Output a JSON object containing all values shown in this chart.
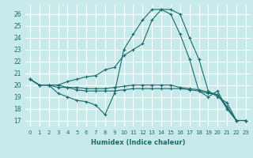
{
  "title": "",
  "xlabel": "Humidex (Indice chaleur)",
  "background_color": "#c8eaea",
  "grid_color": "#ffffff",
  "line_color": "#1a6b6b",
  "xlim": [
    -0.5,
    23.5
  ],
  "ylim": [
    16.5,
    26.8
  ],
  "yticks": [
    17,
    18,
    19,
    20,
    21,
    22,
    23,
    24,
    25,
    26
  ],
  "xticks": [
    0,
    1,
    2,
    3,
    4,
    5,
    6,
    7,
    8,
    9,
    10,
    11,
    12,
    13,
    14,
    15,
    16,
    17,
    18,
    19,
    20,
    21,
    22,
    23
  ],
  "series": [
    [
      20.5,
      20.0,
      20.0,
      19.3,
      19.0,
      18.7,
      18.6,
      18.3,
      17.5,
      19.3,
      23.0,
      24.3,
      25.5,
      26.4,
      26.4,
      26.0,
      24.3,
      22.2,
      19.5,
      19.0,
      19.5,
      18.0,
      17.0,
      17.0
    ],
    [
      20.5,
      20.0,
      20.0,
      20.0,
      19.8,
      19.6,
      19.5,
      19.5,
      19.5,
      19.5,
      19.6,
      19.7,
      19.7,
      19.7,
      19.7,
      19.7,
      19.7,
      19.6,
      19.5,
      19.3,
      19.2,
      18.0,
      17.0,
      17.0
    ],
    [
      20.5,
      20.0,
      20.0,
      19.8,
      19.8,
      19.8,
      19.7,
      19.7,
      19.7,
      19.8,
      19.9,
      20.0,
      20.0,
      20.0,
      20.0,
      20.0,
      19.8,
      19.7,
      19.6,
      19.4,
      19.2,
      18.2,
      17.0,
      17.0
    ],
    [
      20.5,
      20.0,
      20.0,
      20.0,
      20.3,
      20.5,
      20.7,
      20.8,
      21.3,
      21.5,
      22.5,
      23.0,
      23.5,
      25.5,
      26.4,
      26.4,
      26.0,
      24.0,
      22.2,
      19.5,
      19.0,
      18.5,
      17.0,
      17.0
    ]
  ]
}
